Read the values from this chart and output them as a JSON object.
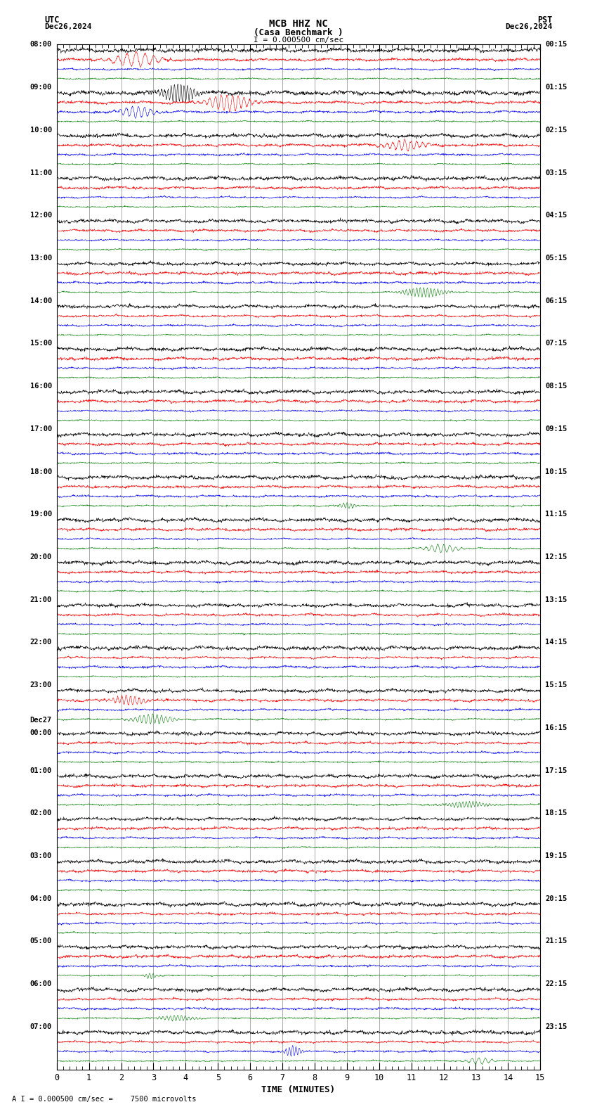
{
  "title_line1": "MCB HHZ NC",
  "title_line2": "(Casa Benchmark )",
  "scale_text": "I = 0.000500 cm/sec",
  "utc_label": "UTC",
  "utc_date": "Dec26,2024",
  "pst_label": "PST",
  "pst_date": "Dec26,2024",
  "bottom_label": "A I = 0.000500 cm/sec =    7500 microvolts",
  "xlabel": "TIME (MINUTES)",
  "xlim": [
    0,
    15
  ],
  "background_color": "#ffffff",
  "trace_colors": [
    "black",
    "red",
    "blue",
    "green"
  ],
  "utc_hour_labels": [
    "08:00",
    "09:00",
    "10:00",
    "11:00",
    "12:00",
    "13:00",
    "14:00",
    "15:00",
    "16:00",
    "17:00",
    "18:00",
    "19:00",
    "20:00",
    "21:00",
    "22:00",
    "23:00",
    "Dec27\n00:00",
    "01:00",
    "02:00",
    "03:00",
    "04:00",
    "05:00",
    "06:00",
    "07:00"
  ],
  "pst_hour_labels": [
    "00:15",
    "01:15",
    "02:15",
    "03:15",
    "04:15",
    "05:15",
    "06:15",
    "07:15",
    "08:15",
    "09:15",
    "10:15",
    "11:15",
    "12:15",
    "13:15",
    "14:15",
    "15:15",
    "16:15",
    "17:15",
    "18:15",
    "19:15",
    "20:15",
    "21:15",
    "22:15",
    "23:15"
  ],
  "n_groups": 24,
  "n_traces_per_group": 4,
  "noise_amplitude": [
    0.38,
    0.28,
    0.22,
    0.16
  ],
  "seed": 42
}
